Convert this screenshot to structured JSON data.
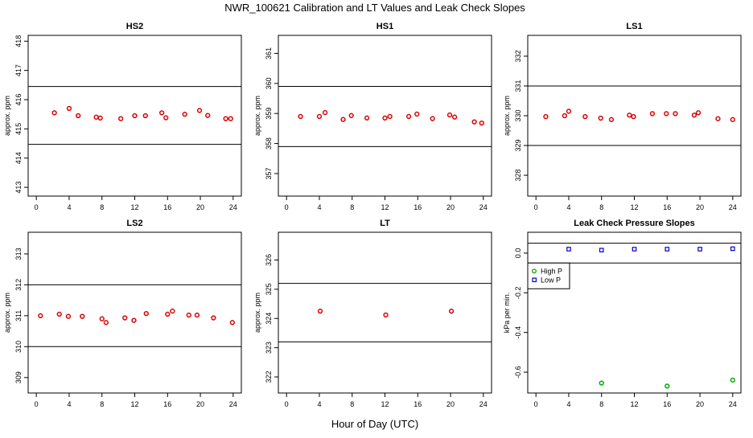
{
  "figure": {
    "title": "NWR_100621  Calibration and LT Values and Leak Check Slopes",
    "xlabel": "Hour of Day (UTC)"
  },
  "colors": {
    "points": "#dd0000",
    "high_p": "#00aa00",
    "low_p": "#0000cc",
    "lines": "#000000"
  },
  "chart_data": [
    {
      "type": "scatter",
      "title": "HS2",
      "ylabel": "approx. ppm",
      "xlim": [
        -1,
        25
      ],
      "ylim": [
        412.7,
        418.2
      ],
      "xticks": [
        0,
        4,
        8,
        12,
        16,
        20,
        24
      ],
      "yticks": [
        413,
        414,
        415,
        416,
        417,
        418
      ],
      "hlines": [
        416.45,
        414.47
      ],
      "series": [
        {
          "color": "#dd0000",
          "x": [
            2.2,
            4.0,
            5.1,
            7.3,
            7.8,
            10.3,
            12.0,
            13.3,
            15.3,
            15.8,
            18.1,
            19.9,
            20.9,
            23.1,
            23.7
          ],
          "y": [
            415.55,
            415.7,
            415.45,
            415.4,
            415.37,
            415.35,
            415.45,
            415.45,
            415.55,
            415.38,
            415.5,
            415.63,
            415.46,
            415.35,
            415.35
          ]
        }
      ]
    },
    {
      "type": "scatter",
      "title": "HS1",
      "ylabel": "approx. ppm",
      "xlim": [
        -1,
        25
      ],
      "ylim": [
        356.25,
        361.6
      ],
      "xticks": [
        0,
        4,
        8,
        12,
        16,
        20,
        24
      ],
      "yticks": [
        357,
        358,
        359,
        360,
        361
      ],
      "hlines": [
        359.9,
        357.9
      ],
      "series": [
        {
          "color": "#dd0000",
          "x": [
            1.7,
            4.0,
            4.7,
            6.9,
            7.9,
            9.8,
            12.0,
            12.6,
            14.9,
            15.9,
            17.8,
            19.9,
            20.5,
            22.9,
            23.8
          ],
          "y": [
            358.9,
            358.9,
            359.03,
            358.8,
            358.93,
            358.85,
            358.85,
            358.9,
            358.9,
            358.98,
            358.83,
            358.95,
            358.88,
            358.72,
            358.68
          ]
        }
      ]
    },
    {
      "type": "scatter",
      "title": "LS1",
      "ylabel": "approx. ppm",
      "xlim": [
        -1,
        25
      ],
      "ylim": [
        327.3,
        332.7
      ],
      "xticks": [
        0,
        4,
        8,
        12,
        16,
        20,
        24
      ],
      "yticks": [
        328,
        329,
        330,
        331,
        332
      ],
      "hlines": [
        331.0,
        329.0
      ],
      "series": [
        {
          "color": "#dd0000",
          "x": [
            1.2,
            3.5,
            4.0,
            6.0,
            7.9,
            9.2,
            11.4,
            11.9,
            14.2,
            15.9,
            17.0,
            19.3,
            19.8,
            22.2,
            24.0
          ],
          "y": [
            329.97,
            330.0,
            330.15,
            329.97,
            329.92,
            329.87,
            330.02,
            329.97,
            330.07,
            330.07,
            330.07,
            330.02,
            330.1,
            329.9,
            329.87
          ]
        }
      ]
    },
    {
      "type": "scatter",
      "title": "LS2",
      "ylabel": "approx. ppm",
      "xlim": [
        -1,
        25
      ],
      "ylim": [
        308.5,
        313.7
      ],
      "xticks": [
        0,
        4,
        8,
        12,
        16,
        20,
        24
      ],
      "yticks": [
        309,
        310,
        311,
        312,
        313
      ],
      "hlines": [
        312.0,
        310.0
      ],
      "series": [
        {
          "color": "#dd0000",
          "x": [
            0.5,
            2.8,
            3.9,
            5.6,
            8.0,
            8.5,
            10.8,
            11.9,
            13.4,
            16.0,
            16.6,
            18.6,
            19.6,
            21.6,
            23.9
          ],
          "y": [
            311.0,
            311.05,
            310.98,
            310.98,
            310.9,
            310.78,
            310.93,
            310.85,
            311.07,
            311.05,
            311.15,
            311.02,
            311.02,
            310.93,
            310.78
          ]
        }
      ]
    },
    {
      "type": "scatter",
      "title": "LT",
      "ylabel": "approx. ppm",
      "xlim": [
        -1,
        25
      ],
      "ylim": [
        321.45,
        326.95
      ],
      "xticks": [
        0,
        4,
        8,
        12,
        16,
        20,
        24
      ],
      "yticks": [
        322,
        323,
        324,
        325,
        326
      ],
      "hlines": [
        325.2,
        323.2
      ],
      "series": [
        {
          "color": "#dd0000",
          "x": [
            4.1,
            12.1,
            20.1
          ],
          "y": [
            324.25,
            324.12,
            324.25
          ]
        }
      ]
    },
    {
      "type": "scatter",
      "title": "Leak Check Pressure Slopes",
      "ylabel": "kPa per min.",
      "xlim": [
        -1,
        25
      ],
      "ylim": [
        -0.705,
        0.105
      ],
      "xticks": [
        0,
        4,
        8,
        12,
        16,
        20,
        24
      ],
      "yticks": [
        0.0,
        -0.2,
        -0.4,
        -0.6
      ],
      "ytick_labels": [
        "0.0",
        "-0.2",
        "-0.4",
        "-0.6"
      ],
      "hlines": [
        0.05,
        -0.05
      ],
      "legend": {
        "placement": "left",
        "entries": [
          "High P",
          "Low P"
        ]
      },
      "series": [
        {
          "name": "High P",
          "color": "#00aa00",
          "marker": "circle",
          "x": [
            8.0,
            16.0,
            24.0
          ],
          "y": [
            -0.655,
            -0.67,
            -0.64
          ]
        },
        {
          "name": "Low P",
          "color": "#0000cc",
          "marker": "square",
          "x": [
            4.0,
            8.0,
            12.0,
            16.0,
            20.0,
            24.0
          ],
          "y": [
            0.02,
            0.015,
            0.02,
            0.02,
            0.02,
            0.022
          ]
        }
      ]
    }
  ]
}
